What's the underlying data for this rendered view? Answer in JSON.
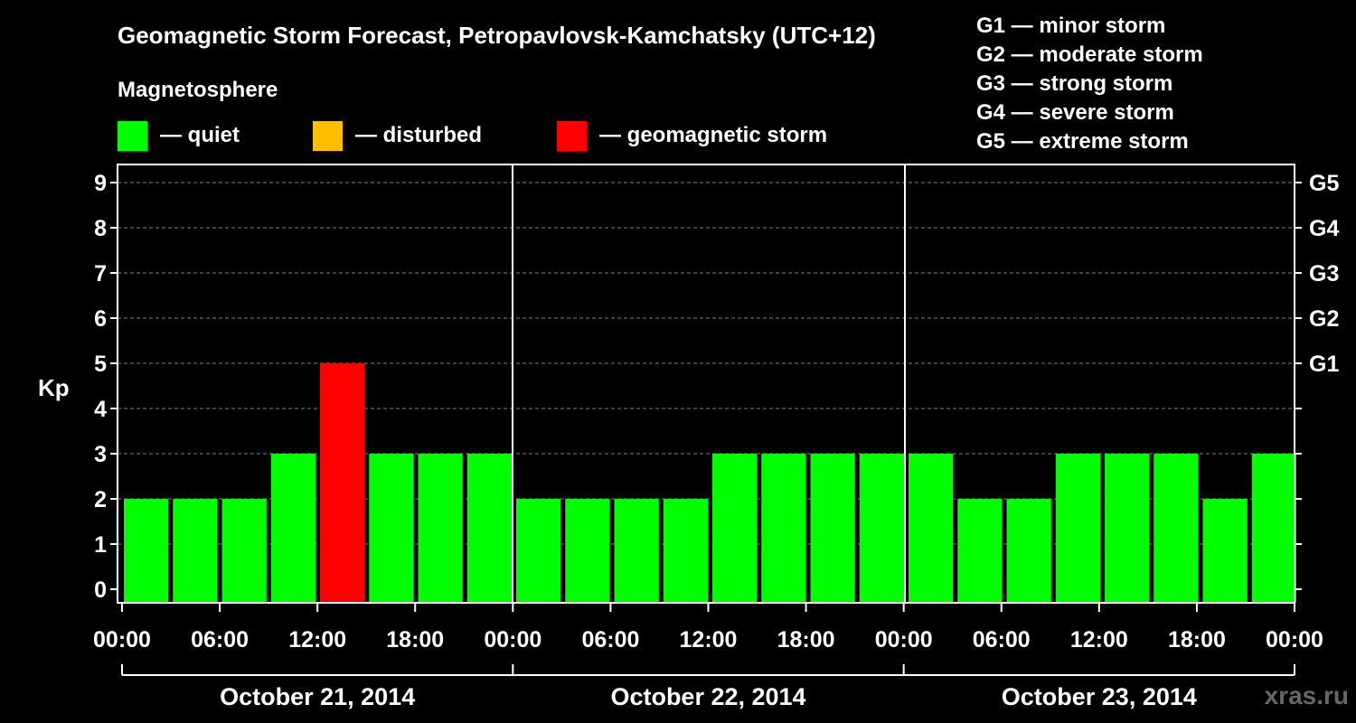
{
  "chart_data": {
    "type": "bar",
    "title": "Geomagnetic Storm Forecast, Petropavlovsk-Kamchatsky (UTC+12)",
    "subtitle": "Magnetosphere",
    "ylabel": "Kp",
    "ylim": [
      0,
      9
    ],
    "yticks": [
      "0",
      "1",
      "2",
      "3",
      "4",
      "5",
      "6",
      "7",
      "8",
      "9"
    ],
    "right_axis_labels": [
      {
        "kp": 5,
        "label": "G1"
      },
      {
        "kp": 6,
        "label": "G2"
      },
      {
        "kp": 7,
        "label": "G3"
      },
      {
        "kp": 8,
        "label": "G4"
      },
      {
        "kp": 9,
        "label": "G5"
      }
    ],
    "x_tick_labels": [
      "00:00",
      "06:00",
      "12:00",
      "18:00",
      "00:00",
      "06:00",
      "12:00",
      "18:00",
      "00:00",
      "06:00",
      "12:00",
      "18:00",
      "00:00"
    ],
    "days": [
      "October 21, 2014",
      "October 22, 2014",
      "October 23, 2014"
    ],
    "values": [
      2,
      2,
      2,
      3,
      5,
      3,
      3,
      3,
      2,
      2,
      2,
      2,
      3,
      3,
      3,
      3,
      3,
      2,
      2,
      3,
      3,
      3,
      2,
      3
    ],
    "colors": {
      "quiet": "#00ff00",
      "disturbed": "#ffbf00",
      "storm": "#ff0000"
    },
    "legend": [
      {
        "key": "quiet",
        "label": "— quiet"
      },
      {
        "key": "disturbed",
        "label": "— disturbed"
      },
      {
        "key": "storm",
        "label": "— geomagnetic storm"
      }
    ],
    "storm_scale": [
      "G1 — minor storm",
      "G2 — moderate storm",
      "G3 — strong storm",
      "G4 — severe storm",
      "G5 — extreme storm"
    ]
  },
  "watermark": "xras.ru"
}
